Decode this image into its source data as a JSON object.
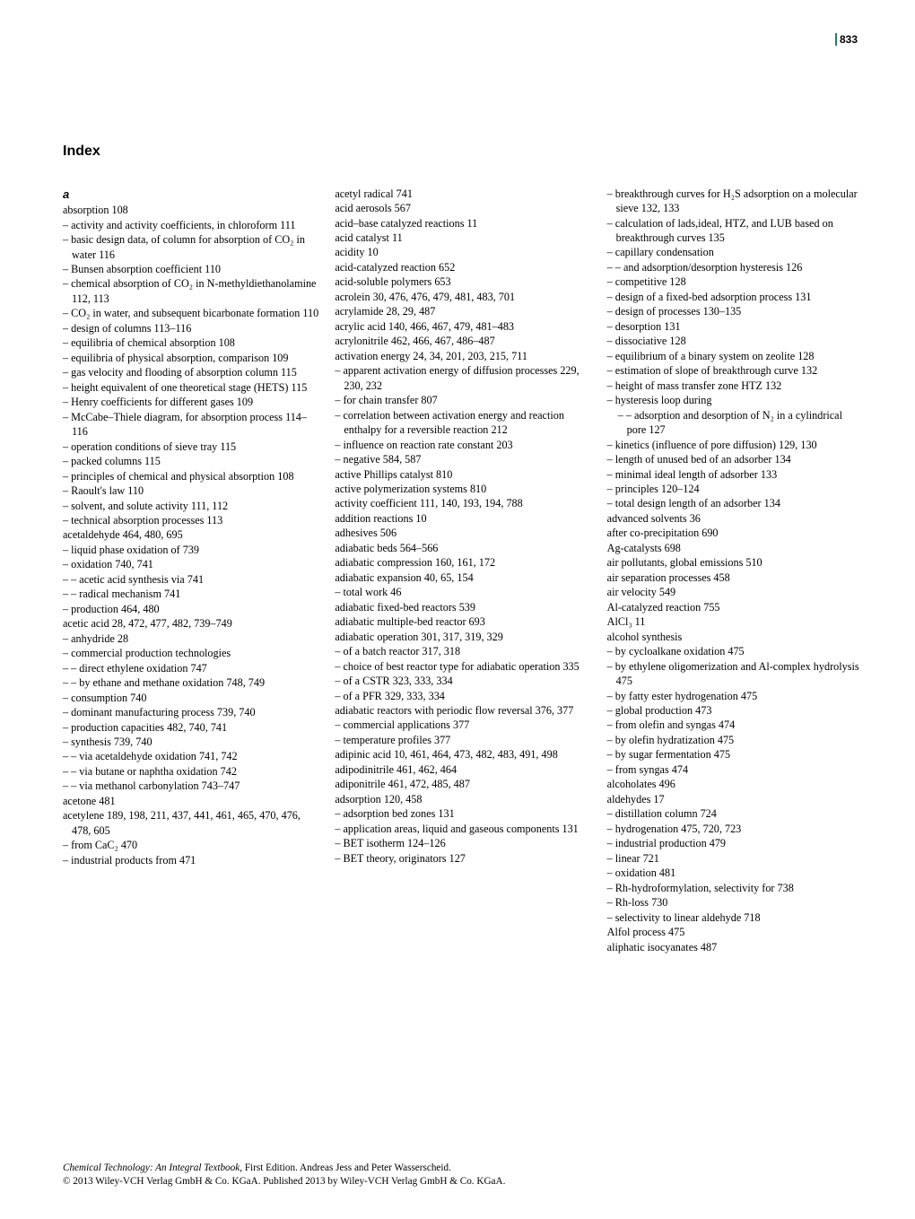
{
  "page_number": "833",
  "title": "Index",
  "letter_a": "a",
  "col1": [
    {
      "cls": "entry",
      "t": "absorption   108"
    },
    {
      "cls": "lvl1",
      "t": "– activity and activity coefficients, in chloroform   111"
    },
    {
      "cls": "lvl1",
      "t": "– basic design data, of column for absorption of CO₂ in water   116"
    },
    {
      "cls": "lvl1",
      "t": "– Bunsen absorption coefficient   110"
    },
    {
      "cls": "lvl1",
      "t": "– chemical absorption of CO₂ in N-methyldiethanolamine   112, 113"
    },
    {
      "cls": "lvl1",
      "t": "– CO₂ in water, and subsequent bicarbonate formation   110"
    },
    {
      "cls": "lvl1",
      "t": "– design of columns   113–116"
    },
    {
      "cls": "lvl1",
      "t": "– equilibria of chemical absorption   108"
    },
    {
      "cls": "lvl1",
      "t": "– equilibria of physical absorption, comparison   109"
    },
    {
      "cls": "lvl1",
      "t": "– gas velocity and flooding of absorption column   115"
    },
    {
      "cls": "lvl1",
      "t": "– height equivalent of one theoretical stage (HETS)   115"
    },
    {
      "cls": "lvl1",
      "t": "– Henry coefficients for different gases   109"
    },
    {
      "cls": "lvl1",
      "t": "– McCabe–Thiele diagram, for absorption process   114–116"
    },
    {
      "cls": "lvl1",
      "t": "– operation conditions of sieve tray   115"
    },
    {
      "cls": "lvl1",
      "t": "– packed columns   115"
    },
    {
      "cls": "lvl1",
      "t": "– principles of chemical and physical absorption   108"
    },
    {
      "cls": "lvl1",
      "t": "– Raoult's law   110"
    },
    {
      "cls": "lvl1",
      "t": "– solvent, and solute activity   111, 112"
    },
    {
      "cls": "lvl1",
      "t": "– technical absorption processes   113"
    },
    {
      "cls": "entry",
      "t": "acetaldehyde   464, 480, 695"
    },
    {
      "cls": "lvl1",
      "t": "– liquid phase oxidation of   739"
    },
    {
      "cls": "lvl1",
      "t": "– oxidation   740, 741"
    },
    {
      "cls": "lvl1",
      "t": "– – acetic acid synthesis via   741"
    },
    {
      "cls": "lvl1",
      "t": "– – radical mechanism   741"
    },
    {
      "cls": "lvl1",
      "t": "– production   464, 480"
    },
    {
      "cls": "entry",
      "t": "acetic acid   28, 472, 477, 482, 739–749"
    },
    {
      "cls": "lvl1",
      "t": "– anhydride   28"
    },
    {
      "cls": "lvl1",
      "t": "– commercial production technologies"
    },
    {
      "cls": "lvl1",
      "t": "– – direct ethylene oxidation   747"
    },
    {
      "cls": "lvl1",
      "t": "– – by ethane and methane oxidation   748, 749"
    },
    {
      "cls": "lvl1",
      "t": "– consumption   740"
    },
    {
      "cls": "lvl1",
      "t": "– dominant manufacturing process   739, 740"
    },
    {
      "cls": "lvl1",
      "t": "– production capacities   482, 740, 741"
    },
    {
      "cls": "lvl1",
      "t": "– synthesis   739, 740"
    },
    {
      "cls": "lvl1",
      "t": "– – via acetaldehyde oxidation   741, 742"
    },
    {
      "cls": "lvl1",
      "t": "– – via butane or naphtha oxidation   742"
    },
    {
      "cls": "lvl1",
      "t": "– – via methanol carbonylation   743–747"
    },
    {
      "cls": "entry",
      "t": "acetone   481"
    },
    {
      "cls": "entry",
      "t": "acetylene   189, 198, 211, 437, 441, 461, 465, 470, 476, 478, 605"
    },
    {
      "cls": "lvl1",
      "t": "– from CaC₂   470"
    },
    {
      "cls": "lvl1",
      "t": "– industrial products from   471"
    }
  ],
  "col2": [
    {
      "cls": "entry",
      "t": "acetyl radical   741"
    },
    {
      "cls": "entry",
      "t": "acid aerosols   567"
    },
    {
      "cls": "entry",
      "t": "acid–base catalyzed reactions   11"
    },
    {
      "cls": "entry",
      "t": "acid catalyst   11"
    },
    {
      "cls": "entry",
      "t": "acidity   10"
    },
    {
      "cls": "entry",
      "t": "acid-catalyzed reaction   652"
    },
    {
      "cls": "entry",
      "t": "acid-soluble polymers   653"
    },
    {
      "cls": "entry",
      "t": "acrolein   30, 476, 476, 479, 481, 483, 701"
    },
    {
      "cls": "entry",
      "t": "acrylamide   28, 29, 487"
    },
    {
      "cls": "entry",
      "t": "acrylic acid   140, 466, 467, 479, 481–483"
    },
    {
      "cls": "entry",
      "t": "acrylonitrile   462, 466, 467, 486–487"
    },
    {
      "cls": "entry",
      "t": "activation energy   24, 34, 201, 203, 215, 711"
    },
    {
      "cls": "lvl1",
      "t": "– apparent activation energy of diffusion processes   229, 230, 232"
    },
    {
      "cls": "lvl1",
      "t": "– for chain transfer   807"
    },
    {
      "cls": "lvl1",
      "t": "– correlation between activation energy and reaction enthalpy for a reversible reaction   212"
    },
    {
      "cls": "lvl1",
      "t": "– influence on reaction rate constant   203"
    },
    {
      "cls": "lvl1",
      "t": "– negative   584, 587"
    },
    {
      "cls": "entry",
      "t": "active Phillips catalyst   810"
    },
    {
      "cls": "entry",
      "t": "active polymerization systems   810"
    },
    {
      "cls": "entry",
      "t": "activity coefficient   111, 140, 193, 194, 788"
    },
    {
      "cls": "entry",
      "t": "addition reactions   10"
    },
    {
      "cls": "entry",
      "t": "adhesives   506"
    },
    {
      "cls": "entry",
      "t": "adiabatic beds   564–566"
    },
    {
      "cls": "entry",
      "t": "adiabatic compression   160, 161, 172"
    },
    {
      "cls": "entry",
      "t": "adiabatic expansion   40, 65, 154"
    },
    {
      "cls": "lvl1",
      "t": "– total work   46"
    },
    {
      "cls": "entry",
      "t": "adiabatic fixed-bed reactors   539"
    },
    {
      "cls": "entry",
      "t": "adiabatic multiple-bed reactor   693"
    },
    {
      "cls": "entry",
      "t": "adiabatic operation   301, 317, 319, 329"
    },
    {
      "cls": "lvl1",
      "t": "– of a batch reactor   317, 318"
    },
    {
      "cls": "lvl1",
      "t": "– choice of best reactor type for adiabatic operation   335"
    },
    {
      "cls": "lvl1",
      "t": "– of a CSTR   323, 333, 334"
    },
    {
      "cls": "lvl1",
      "t": "– of a PFR   329, 333, 334"
    },
    {
      "cls": "entry",
      "t": "adiabatic reactors with periodic flow reversal   376, 377"
    },
    {
      "cls": "lvl1",
      "t": "– commercial applications   377"
    },
    {
      "cls": "lvl1",
      "t": "– temperature profiles   377"
    },
    {
      "cls": "entry",
      "t": "adipinic acid   10, 461, 464, 473, 482, 483, 491, 498"
    },
    {
      "cls": "entry",
      "t": "adipodinitrile   461, 462, 464"
    },
    {
      "cls": "entry",
      "t": "adiponitrile   461, 472, 485, 487"
    },
    {
      "cls": "entry",
      "t": "adsorption   120, 458"
    },
    {
      "cls": "lvl1",
      "t": "– adsorption bed zones   131"
    },
    {
      "cls": "lvl1",
      "t": "– application areas, liquid and gaseous components   131"
    },
    {
      "cls": "lvl1",
      "t": "– BET isotherm   124–126"
    },
    {
      "cls": "lvl1",
      "t": "– BET theory, originators   127"
    }
  ],
  "col3": [
    {
      "cls": "lvl1",
      "t": "– breakthrough curves for H₂S adsorption on a molecular sieve   132, 133"
    },
    {
      "cls": "lvl1",
      "t": "– calculation of lads,ideal, HTZ, and LUB based on breakthrough curves   135"
    },
    {
      "cls": "lvl1",
      "t": "– capillary condensation"
    },
    {
      "cls": "lvl1",
      "t": "– – and adsorption/desorption hysteresis   126"
    },
    {
      "cls": "lvl1",
      "t": "– competitive   128"
    },
    {
      "cls": "lvl1",
      "t": "– design of a fixed-bed adsorption process   131"
    },
    {
      "cls": "lvl1",
      "t": "– design of processes   130–135"
    },
    {
      "cls": "lvl1",
      "t": "– desorption   131"
    },
    {
      "cls": "lvl1",
      "t": "– dissociative   128"
    },
    {
      "cls": "lvl1",
      "t": "– equilibrium of a binary system on zeolite   128"
    },
    {
      "cls": "lvl1",
      "t": "– estimation of slope of breakthrough curve   132"
    },
    {
      "cls": "lvl1",
      "t": "– height of mass transfer zone HTZ   132"
    },
    {
      "cls": "lvl1",
      "t": "– hysteresis loop during"
    },
    {
      "cls": "lvl2",
      "t": "– – adsorption and desorption of N₂ in a cylindrical pore   127"
    },
    {
      "cls": "lvl1",
      "t": "– kinetics (influence of pore diffusion)   129, 130"
    },
    {
      "cls": "lvl1",
      "t": "– length of unused bed of an adsorber   134"
    },
    {
      "cls": "lvl1",
      "t": "– minimal ideal length of adsorber   133"
    },
    {
      "cls": "lvl1",
      "t": "– principles   120–124"
    },
    {
      "cls": "lvl1",
      "t": "– total design length of an adsorber   134"
    },
    {
      "cls": "entry",
      "t": "advanced solvents   36"
    },
    {
      "cls": "entry",
      "t": "after co-precipitation   690"
    },
    {
      "cls": "entry",
      "t": "Ag-catalysts   698"
    },
    {
      "cls": "entry",
      "t": "air pollutants, global emissions   510"
    },
    {
      "cls": "entry",
      "t": "air separation processes   458"
    },
    {
      "cls": "entry",
      "t": "air velocity   549"
    },
    {
      "cls": "entry",
      "t": "Al-catalyzed reaction   755"
    },
    {
      "cls": "entry",
      "t": "AlCl₃   11"
    },
    {
      "cls": "entry",
      "t": "alcohol synthesis"
    },
    {
      "cls": "lvl1",
      "t": "– by cycloalkane oxidation   475"
    },
    {
      "cls": "lvl1",
      "t": "– by ethylene oligomerization and Al-complex hydrolysis   475"
    },
    {
      "cls": "lvl1",
      "t": "– by fatty ester hydrogenation   475"
    },
    {
      "cls": "lvl1",
      "t": "– global production   473"
    },
    {
      "cls": "lvl1",
      "t": "– from olefin and syngas   474"
    },
    {
      "cls": "lvl1",
      "t": "– by olefin hydratization   475"
    },
    {
      "cls": "lvl1",
      "t": "– by sugar fermentation   475"
    },
    {
      "cls": "lvl1",
      "t": "– from syngas   474"
    },
    {
      "cls": "entry",
      "t": "alcoholates   496"
    },
    {
      "cls": "entry",
      "t": "aldehydes   17"
    },
    {
      "cls": "lvl1",
      "t": "– distillation column   724"
    },
    {
      "cls": "lvl1",
      "t": "– hydrogenation   475, 720, 723"
    },
    {
      "cls": "lvl1",
      "t": "– industrial production   479"
    },
    {
      "cls": "lvl1",
      "t": "– linear   721"
    },
    {
      "cls": "lvl1",
      "t": "– oxidation   481"
    },
    {
      "cls": "lvl1",
      "t": "– Rh-hydroformylation, selectivity for   738"
    },
    {
      "cls": "lvl1",
      "t": "– Rh-loss   730"
    },
    {
      "cls": "lvl1",
      "t": "– selectivity to linear aldehyde   718"
    },
    {
      "cls": "entry",
      "t": "Alfol process   475"
    },
    {
      "cls": "entry",
      "t": "aliphatic isocyanates   487"
    }
  ],
  "footer": {
    "line1a": "Chemical Technology: An Integral Textbook",
    "line1b": ", First Edition. Andreas Jess and Peter Wasserscheid.",
    "line2": "© 2013 Wiley-VCH Verlag GmbH & Co. KGaA. Published 2013 by Wiley-VCH Verlag GmbH & Co. KGaA."
  }
}
